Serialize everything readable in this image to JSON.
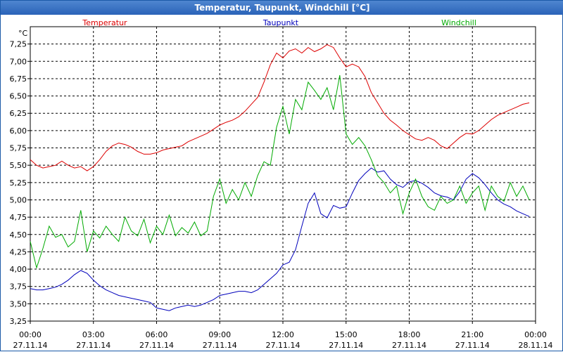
{
  "window": {
    "title": "Temperatur, Taupunkt, Windchill [°C]"
  },
  "chart_data": {
    "type": "line",
    "title": "Temperatur, Taupunkt, Windchill [°C]",
    "ylabel": "°C",
    "ylim": [
      3.25,
      7.5
    ],
    "yticks": [
      "7,25",
      "7,00",
      "6,75",
      "6,50",
      "6,25",
      "6,00",
      "5,75",
      "5,50",
      "5,25",
      "5,00",
      "4,75",
      "4,50",
      "4,25",
      "4,00",
      "3,75",
      "3,50",
      "3,25"
    ],
    "xlim": [
      0,
      24
    ],
    "xticks": [
      {
        "time": "00:00",
        "date": "27.11.14"
      },
      {
        "time": "03:00",
        "date": "27.11.14"
      },
      {
        "time": "06:00",
        "date": "27.11.14"
      },
      {
        "time": "09:00",
        "date": "27.11.14"
      },
      {
        "time": "12:00",
        "date": "27.11.14"
      },
      {
        "time": "15:00",
        "date": "27.11.14"
      },
      {
        "time": "18:00",
        "date": "27.11.14"
      },
      {
        "time": "21:00",
        "date": "27.11.14"
      },
      {
        "time": "00:00",
        "date": "28.11.14"
      }
    ],
    "grid": true,
    "series": [
      {
        "name": "Temperatur",
        "color": "#dd0000",
        "x": [
          0,
          0.3,
          0.6,
          0.9,
          1.2,
          1.5,
          1.8,
          2.1,
          2.4,
          2.7,
          3.0,
          3.3,
          3.6,
          3.9,
          4.2,
          4.5,
          4.8,
          5.1,
          5.4,
          5.7,
          6.0,
          6.3,
          6.6,
          6.9,
          7.2,
          7.5,
          7.8,
          8.1,
          8.4,
          8.7,
          9.0,
          9.3,
          9.6,
          9.9,
          10.2,
          10.5,
          10.8,
          11.1,
          11.4,
          11.7,
          12.0,
          12.3,
          12.6,
          12.9,
          13.2,
          13.5,
          13.8,
          14.1,
          14.4,
          14.7,
          15.0,
          15.3,
          15.6,
          15.9,
          16.2,
          16.5,
          16.8,
          17.1,
          17.4,
          17.7,
          18.0,
          18.3,
          18.6,
          18.9,
          19.2,
          19.5,
          19.8,
          20.1,
          20.4,
          20.7,
          21.0,
          21.3,
          21.6,
          21.9,
          22.2,
          22.5,
          22.8,
          23.1,
          23.4,
          23.7
        ],
        "values": [
          5.58,
          5.5,
          5.46,
          5.48,
          5.5,
          5.56,
          5.5,
          5.46,
          5.48,
          5.42,
          5.48,
          5.58,
          5.7,
          5.78,
          5.82,
          5.8,
          5.76,
          5.7,
          5.66,
          5.66,
          5.68,
          5.72,
          5.74,
          5.76,
          5.78,
          5.84,
          5.88,
          5.92,
          5.96,
          6.02,
          6.08,
          6.12,
          6.15,
          6.2,
          6.28,
          6.38,
          6.48,
          6.7,
          6.95,
          7.12,
          7.05,
          7.15,
          7.18,
          7.12,
          7.2,
          7.14,
          7.18,
          7.24,
          7.2,
          7.05,
          6.92,
          6.96,
          6.92,
          6.78,
          6.55,
          6.4,
          6.25,
          6.15,
          6.08,
          6.0,
          5.94,
          5.88,
          5.86,
          5.9,
          5.86,
          5.78,
          5.74,
          5.82,
          5.9,
          5.96,
          5.95,
          6.0,
          6.08,
          6.16,
          6.22,
          6.26,
          6.3,
          6.34,
          6.38,
          6.4
        ]
      },
      {
        "name": "Taupunkt",
        "color": "#0000bb",
        "x": [
          0,
          0.3,
          0.6,
          0.9,
          1.2,
          1.5,
          1.8,
          2.1,
          2.4,
          2.7,
          3.0,
          3.3,
          3.6,
          3.9,
          4.2,
          4.5,
          4.8,
          5.1,
          5.4,
          5.7,
          6.0,
          6.3,
          6.6,
          6.9,
          7.2,
          7.5,
          7.8,
          8.1,
          8.4,
          8.7,
          9.0,
          9.3,
          9.6,
          9.9,
          10.2,
          10.5,
          10.8,
          11.1,
          11.4,
          11.7,
          12.0,
          12.3,
          12.6,
          12.9,
          13.2,
          13.5,
          13.8,
          14.1,
          14.4,
          14.7,
          15.0,
          15.3,
          15.6,
          15.9,
          16.2,
          16.5,
          16.8,
          17.1,
          17.4,
          17.7,
          18.0,
          18.3,
          18.6,
          18.9,
          19.2,
          19.5,
          19.8,
          20.1,
          20.4,
          20.7,
          21.0,
          21.3,
          21.6,
          21.9,
          22.2,
          22.5,
          22.8,
          23.1,
          23.4,
          23.7
        ],
        "values": [
          3.72,
          3.7,
          3.7,
          3.72,
          3.74,
          3.78,
          3.84,
          3.92,
          3.98,
          3.94,
          3.84,
          3.76,
          3.7,
          3.66,
          3.62,
          3.6,
          3.58,
          3.56,
          3.54,
          3.52,
          3.44,
          3.42,
          3.4,
          3.44,
          3.46,
          3.48,
          3.46,
          3.48,
          3.52,
          3.56,
          3.62,
          3.64,
          3.66,
          3.68,
          3.68,
          3.66,
          3.7,
          3.78,
          3.86,
          3.94,
          4.06,
          4.1,
          4.28,
          4.62,
          4.95,
          5.1,
          4.8,
          4.74,
          4.92,
          4.88,
          4.9,
          5.1,
          5.28,
          5.38,
          5.46,
          5.4,
          5.42,
          5.3,
          5.22,
          5.18,
          5.26,
          5.28,
          5.24,
          5.18,
          5.1,
          5.06,
          5.04,
          5.0,
          5.12,
          5.3,
          5.38,
          5.32,
          5.22,
          5.1,
          5.0,
          4.94,
          4.9,
          4.84,
          4.8,
          4.76
        ]
      },
      {
        "name": "Windchill",
        "color": "#00aa00",
        "x": [
          0,
          0.3,
          0.6,
          0.9,
          1.2,
          1.5,
          1.8,
          2.1,
          2.4,
          2.7,
          3.0,
          3.3,
          3.6,
          3.9,
          4.2,
          4.5,
          4.8,
          5.1,
          5.4,
          5.7,
          6.0,
          6.3,
          6.6,
          6.9,
          7.2,
          7.5,
          7.8,
          8.1,
          8.4,
          8.7,
          9.0,
          9.3,
          9.6,
          9.9,
          10.2,
          10.5,
          10.8,
          11.1,
          11.4,
          11.7,
          12.0,
          12.3,
          12.6,
          12.9,
          13.2,
          13.5,
          13.8,
          14.1,
          14.4,
          14.7,
          15.0,
          15.3,
          15.6,
          15.9,
          16.2,
          16.5,
          16.8,
          17.1,
          17.4,
          17.7,
          18.0,
          18.3,
          18.6,
          18.9,
          19.2,
          19.5,
          19.8,
          20.1,
          20.4,
          20.7,
          21.0,
          21.3,
          21.6,
          21.9,
          22.2,
          22.5,
          22.8,
          23.1,
          23.4,
          23.7
        ],
        "values": [
          4.4,
          4.02,
          4.3,
          4.62,
          4.46,
          4.5,
          4.32,
          4.4,
          4.85,
          4.25,
          4.55,
          4.45,
          4.62,
          4.5,
          4.4,
          4.75,
          4.55,
          4.48,
          4.72,
          4.38,
          4.62,
          4.5,
          4.78,
          4.48,
          4.6,
          4.52,
          4.68,
          4.48,
          4.55,
          5.05,
          5.3,
          4.95,
          5.15,
          5.0,
          5.25,
          5.05,
          5.35,
          5.55,
          5.5,
          6.05,
          6.35,
          5.95,
          6.45,
          6.3,
          6.7,
          6.58,
          6.45,
          6.62,
          6.3,
          6.8,
          5.95,
          5.8,
          5.9,
          5.78,
          5.58,
          5.35,
          5.25,
          5.1,
          5.2,
          4.8,
          5.1,
          5.3,
          5.05,
          4.9,
          4.85,
          5.05,
          4.95,
          5.0,
          5.2,
          4.95,
          5.1,
          5.2,
          4.85,
          5.2,
          5.05,
          4.98,
          5.25,
          5.05,
          5.2,
          5.0
        ]
      }
    ]
  }
}
